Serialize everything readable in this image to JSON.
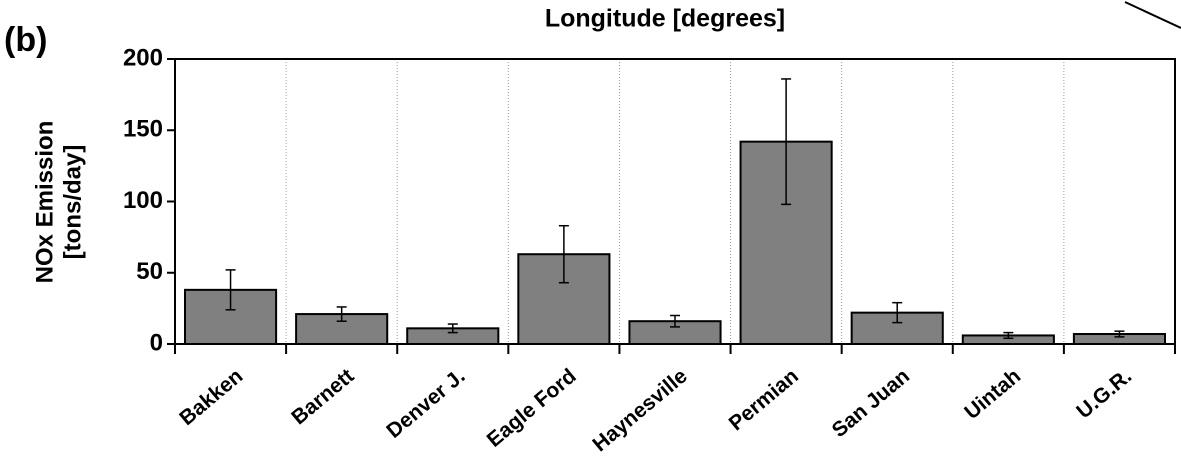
{
  "chart_data": {
    "type": "bar",
    "panel_label": "(b)",
    "title": "Longitude [degrees]",
    "y_label": [
      "NOx Emission",
      "[tons/day]"
    ],
    "categories": [
      "Bakken",
      "Barnett",
      "Denver J.",
      "Eagle Ford",
      "Haynesville",
      "Permian",
      "San Juan",
      "Uintah",
      "U.G.R."
    ],
    "values": [
      38,
      21,
      11,
      63,
      16,
      142,
      22,
      6,
      7
    ],
    "errors": [
      14,
      5,
      3,
      20,
      4,
      44,
      7,
      2,
      2
    ],
    "color": "#808080",
    "ylim": [
      0,
      200
    ],
    "yticks": [
      0,
      50,
      100,
      150,
      200
    ],
    "grid": true
  }
}
